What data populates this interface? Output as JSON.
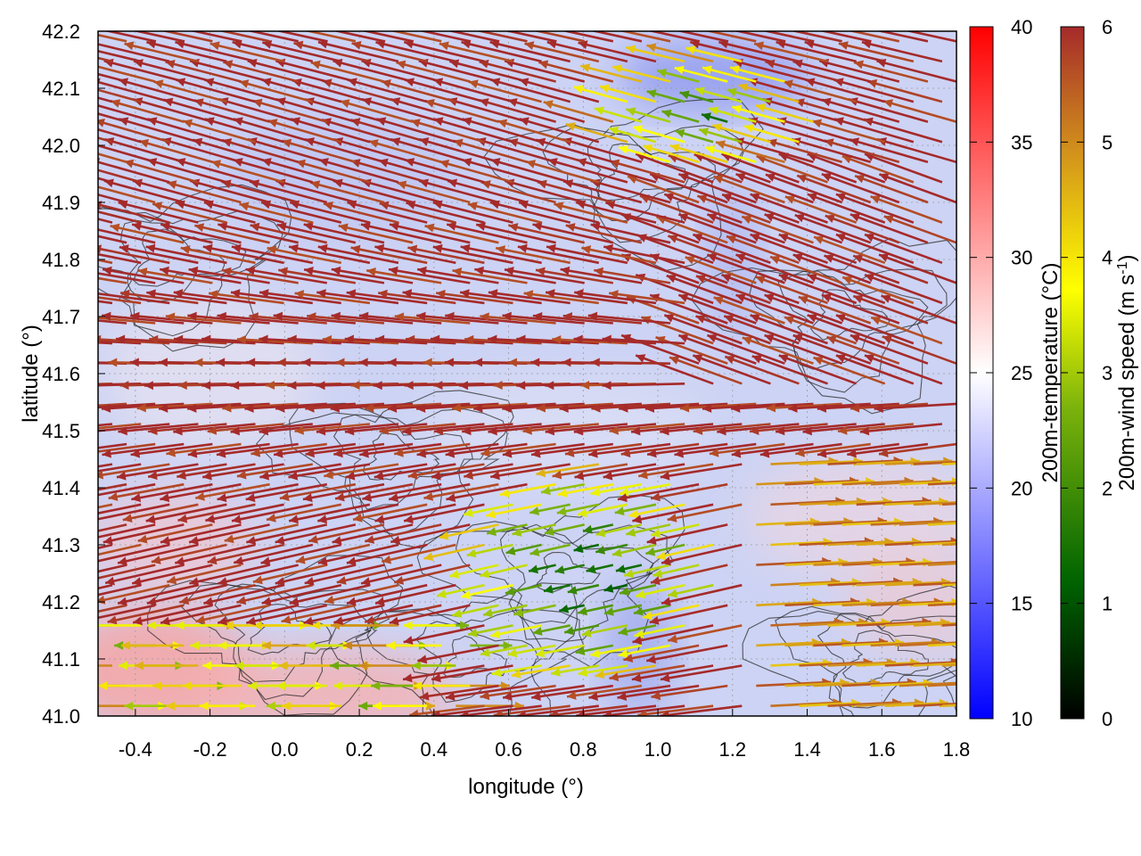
{
  "chart_data": {
    "type": "heatmap",
    "title": "",
    "xlabel": "longitude (°)",
    "ylabel": "latitude (°)",
    "xlim": [
      -0.5,
      1.8
    ],
    "ylim": [
      41.0,
      42.2
    ],
    "xticks": [
      {
        "value": -0.4,
        "label": "-0.4"
      },
      {
        "value": -0.2,
        "label": "-0.2"
      },
      {
        "value": 0.0,
        "label": "0.0"
      },
      {
        "value": 0.2,
        "label": "0.2"
      },
      {
        "value": 0.4,
        "label": "0.4"
      },
      {
        "value": 0.6,
        "label": "0.6"
      },
      {
        "value": 0.8,
        "label": "0.8"
      },
      {
        "value": 1.0,
        "label": "1.0"
      },
      {
        "value": 1.2,
        "label": "1.2"
      },
      {
        "value": 1.4,
        "label": "1.4"
      },
      {
        "value": 1.6,
        "label": "1.6"
      },
      {
        "value": 1.8,
        "label": "1.8"
      }
    ],
    "yticks": [
      {
        "value": 41.0,
        "label": "41.0"
      },
      {
        "value": 41.1,
        "label": "41.1"
      },
      {
        "value": 41.2,
        "label": "41.2"
      },
      {
        "value": 41.3,
        "label": "41.3"
      },
      {
        "value": 41.4,
        "label": "41.4"
      },
      {
        "value": 41.5,
        "label": "41.5"
      },
      {
        "value": 41.6,
        "label": "41.6"
      },
      {
        "value": 41.7,
        "label": "41.7"
      },
      {
        "value": 41.8,
        "label": "41.8"
      },
      {
        "value": 41.9,
        "label": "41.9"
      },
      {
        "value": 42.0,
        "label": "42.0"
      },
      {
        "value": 42.1,
        "label": "42.1"
      },
      {
        "value": 42.2,
        "label": "42.2"
      }
    ],
    "grid": true,
    "temperature_field": {
      "label": "200m-temperature (°C)",
      "range": [
        10,
        40
      ],
      "colormap": [
        "#0000ff",
        "#ffffff",
        "#ff0000"
      ],
      "ticks": [
        {
          "value": 10,
          "label": "10"
        },
        {
          "value": 15,
          "label": "15"
        },
        {
          "value": 20,
          "label": "20"
        },
        {
          "value": 25,
          "label": "25"
        },
        {
          "value": 30,
          "label": "30"
        },
        {
          "value": 35,
          "label": "35"
        },
        {
          "value": 40,
          "label": "40"
        }
      ]
    },
    "wind_field": {
      "label_main": "200m-wind speed (m s",
      "label_sup": "-1",
      "label_end": ")",
      "range": [
        0,
        6
      ],
      "colormap": [
        "#000000",
        "#006400",
        "#7cb30c",
        "#ffff00",
        "#d2911c",
        "#a52a2a"
      ],
      "ticks": [
        {
          "value": 0,
          "label": "0"
        },
        {
          "value": 1,
          "label": "1"
        },
        {
          "value": 2,
          "label": "2"
        },
        {
          "value": 3,
          "label": "3"
        },
        {
          "value": 4,
          "label": "4"
        },
        {
          "value": 5,
          "label": "5"
        },
        {
          "value": 6,
          "label": "6"
        }
      ]
    },
    "background_color": "#cdd3f4",
    "contour_color": "#2a2a2a"
  }
}
